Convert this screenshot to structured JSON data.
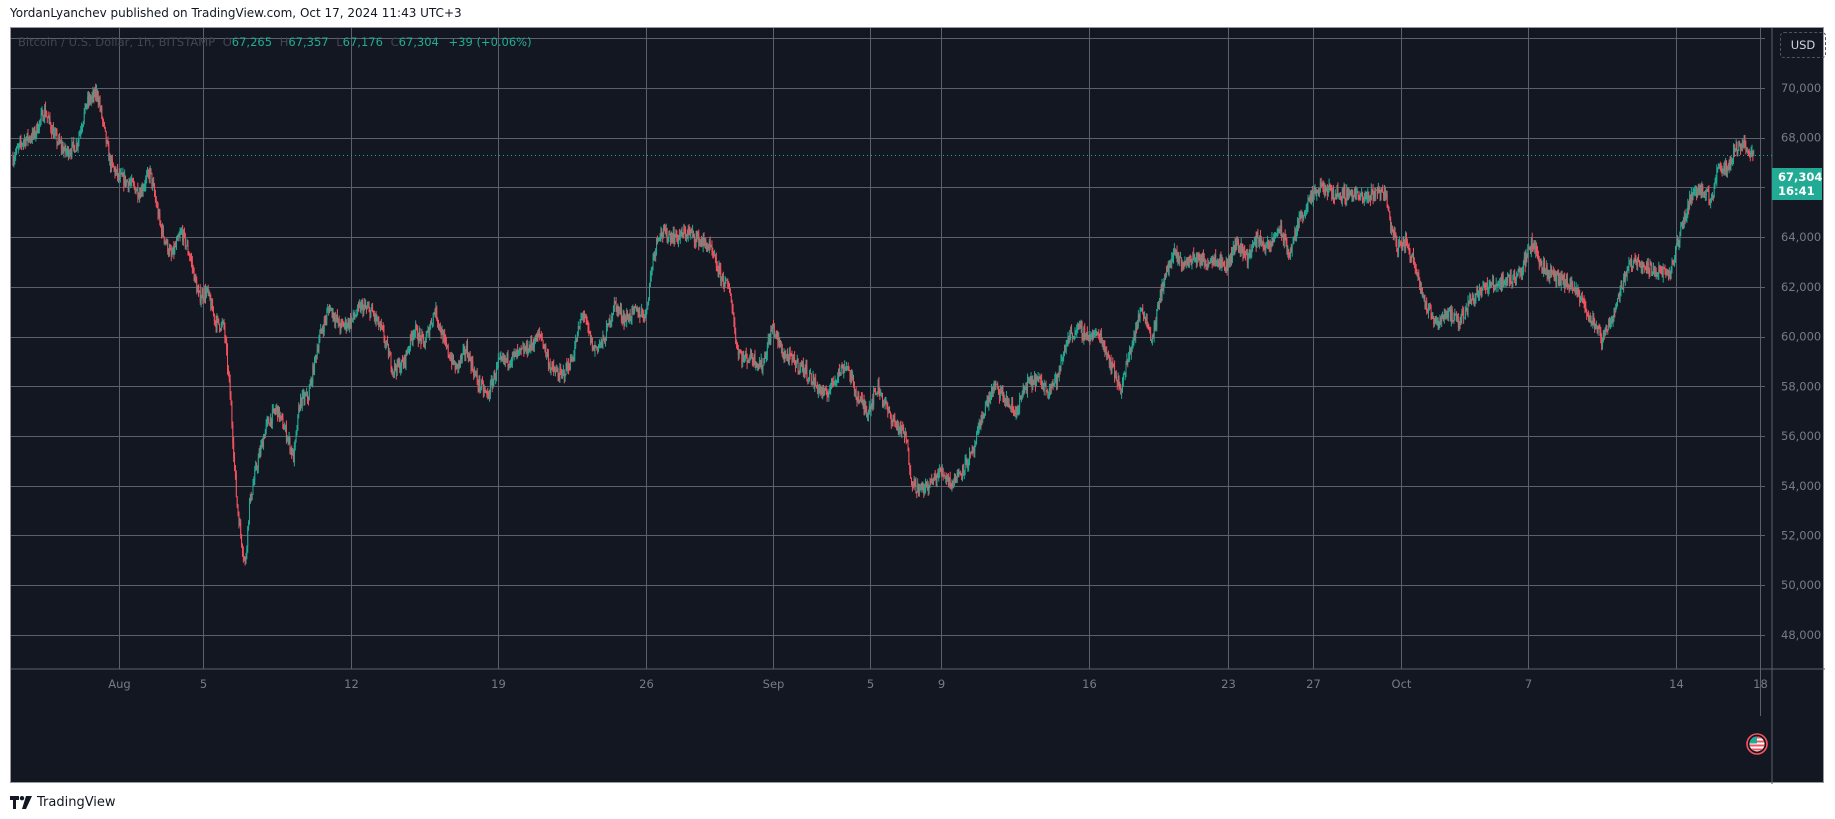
{
  "header": {
    "published_text": "YordanLyanchev published on TradingView.com, Oct 17, 2024 11:43 UTC+3"
  },
  "legend": {
    "symbol": "Bitcoin / U.S. Dollar, 1h, BITSTAMP",
    "open_label": "O",
    "open": "67,265",
    "high_label": "H",
    "high": "67,357",
    "low_label": "L",
    "low": "67,176",
    "close_label": "C",
    "close": "67,304",
    "change": "+39 (+0.06%)"
  },
  "currency_button": {
    "label": "USD"
  },
  "price_tag": {
    "price": "67,304",
    "countdown": "16:41"
  },
  "footer": {
    "brand": "TradingView"
  },
  "colors": {
    "background": "#131722",
    "grid": "#5d606b",
    "axis_text": "#787b86",
    "up": "#22ab94",
    "down": "#f7525f",
    "last_price_line": "#22ab94"
  },
  "chart_data": {
    "type": "candlestick",
    "title": "Bitcoin / U.S. Dollar, 1h, BITSTAMP",
    "xlabel": "",
    "ylabel": "USD",
    "ylim": [
      47000,
      72500
    ],
    "grid": true,
    "y_ticks": [
      "70,000",
      "68,000",
      "66,000",
      "64,000",
      "62,000",
      "60,000",
      "58,000",
      "56,000",
      "54,000",
      "52,000",
      "50,000",
      "48,000"
    ],
    "y_tick_values": [
      70000,
      68000,
      66000,
      64000,
      62000,
      60000,
      58000,
      56000,
      54000,
      52000,
      50000,
      48000
    ],
    "x_ticks": [
      {
        "label": "Aug",
        "day": 5
      },
      {
        "label": "5",
        "day": 9
      },
      {
        "label": "12",
        "day": 16
      },
      {
        "label": "19",
        "day": 23
      },
      {
        "label": "26",
        "day": 30
      },
      {
        "label": "Sep",
        "day": 36
      },
      {
        "label": "5",
        "day": 40.6
      },
      {
        "label": "9",
        "day": 44
      },
      {
        "label": "16",
        "day": 51
      },
      {
        "label": "23",
        "day": 57.6
      },
      {
        "label": "27",
        "day": 61.6
      },
      {
        "label": "Oct",
        "day": 65.8
      },
      {
        "label": "7",
        "day": 71.8
      },
      {
        "label": "14",
        "day": 78.8
      },
      {
        "label": "18",
        "day": 82.8
      }
    ],
    "last_price": 67304,
    "price_path": [
      {
        "day": 0.0,
        "price": 67200
      },
      {
        "day": 0.5,
        "price": 67900
      },
      {
        "day": 1.0,
        "price": 68100
      },
      {
        "day": 1.5,
        "price": 69100
      },
      {
        "day": 2.0,
        "price": 68000
      },
      {
        "day": 2.5,
        "price": 67400
      },
      {
        "day": 3.0,
        "price": 67700
      },
      {
        "day": 3.5,
        "price": 69400
      },
      {
        "day": 4.0,
        "price": 69800
      },
      {
        "day": 4.3,
        "price": 68400
      },
      {
        "day": 4.6,
        "price": 67000
      },
      {
        "day": 5.0,
        "price": 66400
      },
      {
        "day": 5.5,
        "price": 66200
      },
      {
        "day": 6.0,
        "price": 65800
      },
      {
        "day": 6.5,
        "price": 66600
      },
      {
        "day": 7.0,
        "price": 64400
      },
      {
        "day": 7.5,
        "price": 63200
      },
      {
        "day": 8.0,
        "price": 64200
      },
      {
        "day": 8.4,
        "price": 63200
      },
      {
        "day": 8.8,
        "price": 61600
      },
      {
        "day": 9.2,
        "price": 61800
      },
      {
        "day": 9.6,
        "price": 60600
      },
      {
        "day": 10.0,
        "price": 60400
      },
      {
        "day": 10.3,
        "price": 57600
      },
      {
        "day": 10.6,
        "price": 53400
      },
      {
        "day": 10.8,
        "price": 52000
      },
      {
        "day": 11.0,
        "price": 50800
      },
      {
        "day": 11.2,
        "price": 53200
      },
      {
        "day": 11.5,
        "price": 54600
      },
      {
        "day": 12.0,
        "price": 56400
      },
      {
        "day": 12.5,
        "price": 57100
      },
      {
        "day": 13.0,
        "price": 56000
      },
      {
        "day": 13.3,
        "price": 55100
      },
      {
        "day": 13.6,
        "price": 57400
      },
      {
        "day": 14.0,
        "price": 57600
      },
      {
        "day": 14.5,
        "price": 59900
      },
      {
        "day": 15.0,
        "price": 61200
      },
      {
        "day": 15.5,
        "price": 60400
      },
      {
        "day": 16.0,
        "price": 60600
      },
      {
        "day": 16.5,
        "price": 61200
      },
      {
        "day": 17.0,
        "price": 61000
      },
      {
        "day": 17.5,
        "price": 60200
      },
      {
        "day": 18.0,
        "price": 58700
      },
      {
        "day": 18.5,
        "price": 58900
      },
      {
        "day": 19.0,
        "price": 60300
      },
      {
        "day": 19.5,
        "price": 59700
      },
      {
        "day": 20.0,
        "price": 61100
      },
      {
        "day": 20.5,
        "price": 59600
      },
      {
        "day": 21.0,
        "price": 58700
      },
      {
        "day": 21.5,
        "price": 59500
      },
      {
        "day": 22.0,
        "price": 58200
      },
      {
        "day": 22.5,
        "price": 57600
      },
      {
        "day": 23.0,
        "price": 58900
      },
      {
        "day": 23.5,
        "price": 59100
      },
      {
        "day": 24.0,
        "price": 59300
      },
      {
        "day": 24.5,
        "price": 59600
      },
      {
        "day": 25.0,
        "price": 60100
      },
      {
        "day": 25.5,
        "price": 58700
      },
      {
        "day": 26.0,
        "price": 58400
      },
      {
        "day": 26.5,
        "price": 59100
      },
      {
        "day": 27.0,
        "price": 61000
      },
      {
        "day": 27.5,
        "price": 59500
      },
      {
        "day": 28.0,
        "price": 59800
      },
      {
        "day": 28.5,
        "price": 61300
      },
      {
        "day": 29.0,
        "price": 60700
      },
      {
        "day": 29.5,
        "price": 61000
      },
      {
        "day": 30.0,
        "price": 60900
      },
      {
        "day": 30.3,
        "price": 63000
      },
      {
        "day": 30.6,
        "price": 64200
      },
      {
        "day": 31.0,
        "price": 64100
      },
      {
        "day": 31.5,
        "price": 64000
      },
      {
        "day": 32.0,
        "price": 64200
      },
      {
        "day": 32.5,
        "price": 63900
      },
      {
        "day": 33.0,
        "price": 63600
      },
      {
        "day": 33.5,
        "price": 62500
      },
      {
        "day": 34.0,
        "price": 61800
      },
      {
        "day": 34.3,
        "price": 59600
      },
      {
        "day": 34.6,
        "price": 59100
      },
      {
        "day": 35.0,
        "price": 59200
      },
      {
        "day": 35.5,
        "price": 58800
      },
      {
        "day": 36.0,
        "price": 60400
      },
      {
        "day": 36.5,
        "price": 59300
      },
      {
        "day": 37.0,
        "price": 59000
      },
      {
        "day": 37.5,
        "price": 58700
      },
      {
        "day": 38.0,
        "price": 58100
      },
      {
        "day": 38.5,
        "price": 57600
      },
      {
        "day": 39.0,
        "price": 58400
      },
      {
        "day": 39.5,
        "price": 58900
      },
      {
        "day": 40.0,
        "price": 57600
      },
      {
        "day": 40.5,
        "price": 57000
      },
      {
        "day": 41.0,
        "price": 58000
      },
      {
        "day": 41.5,
        "price": 56900
      },
      {
        "day": 42.0,
        "price": 56300
      },
      {
        "day": 42.3,
        "price": 56000
      },
      {
        "day": 42.6,
        "price": 54200
      },
      {
        "day": 43.0,
        "price": 53800
      },
      {
        "day": 43.5,
        "price": 54100
      },
      {
        "day": 44.0,
        "price": 54600
      },
      {
        "day": 44.5,
        "price": 54100
      },
      {
        "day": 45.0,
        "price": 54700
      },
      {
        "day": 45.5,
        "price": 55300
      },
      {
        "day": 46.0,
        "price": 57000
      },
      {
        "day": 46.5,
        "price": 58000
      },
      {
        "day": 47.0,
        "price": 57500
      },
      {
        "day": 47.5,
        "price": 56900
      },
      {
        "day": 48.0,
        "price": 58000
      },
      {
        "day": 48.5,
        "price": 58300
      },
      {
        "day": 49.0,
        "price": 57900
      },
      {
        "day": 49.5,
        "price": 58300
      },
      {
        "day": 50.0,
        "price": 60000
      },
      {
        "day": 50.5,
        "price": 60300
      },
      {
        "day": 51.0,
        "price": 60000
      },
      {
        "day": 51.5,
        "price": 60100
      },
      {
        "day": 52.0,
        "price": 59000
      },
      {
        "day": 52.5,
        "price": 57900
      },
      {
        "day": 53.0,
        "price": 59600
      },
      {
        "day": 53.5,
        "price": 61200
      },
      {
        "day": 54.0,
        "price": 59900
      },
      {
        "day": 54.5,
        "price": 62200
      },
      {
        "day": 55.0,
        "price": 63300
      },
      {
        "day": 55.5,
        "price": 62900
      },
      {
        "day": 56.0,
        "price": 63200
      },
      {
        "day": 56.5,
        "price": 63000
      },
      {
        "day": 57.0,
        "price": 63200
      },
      {
        "day": 57.5,
        "price": 62800
      },
      {
        "day": 58.0,
        "price": 63800
      },
      {
        "day": 58.5,
        "price": 63200
      },
      {
        "day": 59.0,
        "price": 64000
      },
      {
        "day": 59.5,
        "price": 63500
      },
      {
        "day": 60.0,
        "price": 64400
      },
      {
        "day": 60.5,
        "price": 63300
      },
      {
        "day": 61.0,
        "price": 64800
      },
      {
        "day": 61.5,
        "price": 65500
      },
      {
        "day": 62.0,
        "price": 66000
      },
      {
        "day": 62.5,
        "price": 65800
      },
      {
        "day": 63.0,
        "price": 65700
      },
      {
        "day": 63.5,
        "price": 65800
      },
      {
        "day": 64.0,
        "price": 65500
      },
      {
        "day": 64.5,
        "price": 65800
      },
      {
        "day": 65.0,
        "price": 65900
      },
      {
        "day": 65.3,
        "price": 64500
      },
      {
        "day": 65.6,
        "price": 63600
      },
      {
        "day": 66.0,
        "price": 63800
      },
      {
        "day": 66.5,
        "price": 62800
      },
      {
        "day": 67.0,
        "price": 61100
      },
      {
        "day": 67.5,
        "price": 60600
      },
      {
        "day": 68.0,
        "price": 61000
      },
      {
        "day": 68.5,
        "price": 60500
      },
      {
        "day": 69.0,
        "price": 61400
      },
      {
        "day": 69.5,
        "price": 61900
      },
      {
        "day": 70.0,
        "price": 62000
      },
      {
        "day": 70.5,
        "price": 62200
      },
      {
        "day": 71.0,
        "price": 62300
      },
      {
        "day": 71.5,
        "price": 62700
      },
      {
        "day": 72.0,
        "price": 63800
      },
      {
        "day": 72.5,
        "price": 62800
      },
      {
        "day": 73.0,
        "price": 62400
      },
      {
        "day": 73.5,
        "price": 62200
      },
      {
        "day": 74.0,
        "price": 61900
      },
      {
        "day": 74.5,
        "price": 61200
      },
      {
        "day": 75.0,
        "price": 60400
      },
      {
        "day": 75.3,
        "price": 59800
      },
      {
        "day": 75.6,
        "price": 60400
      },
      {
        "day": 76.0,
        "price": 61300
      },
      {
        "day": 76.5,
        "price": 62800
      },
      {
        "day": 77.0,
        "price": 63100
      },
      {
        "day": 77.5,
        "price": 62700
      },
      {
        "day": 78.0,
        "price": 62700
      },
      {
        "day": 78.5,
        "price": 62400
      },
      {
        "day": 79.0,
        "price": 64100
      },
      {
        "day": 79.5,
        "price": 65600
      },
      {
        "day": 80.0,
        "price": 66000
      },
      {
        "day": 80.5,
        "price": 65400
      },
      {
        "day": 80.8,
        "price": 67000
      },
      {
        "day": 81.2,
        "price": 66700
      },
      {
        "day": 81.6,
        "price": 67600
      },
      {
        "day": 82.0,
        "price": 67700
      },
      {
        "day": 82.3,
        "price": 67450
      },
      {
        "day": 82.5,
        "price": 67304
      }
    ],
    "annotations": [
      "Last price 67,304 with 16:41 countdown"
    ]
  }
}
